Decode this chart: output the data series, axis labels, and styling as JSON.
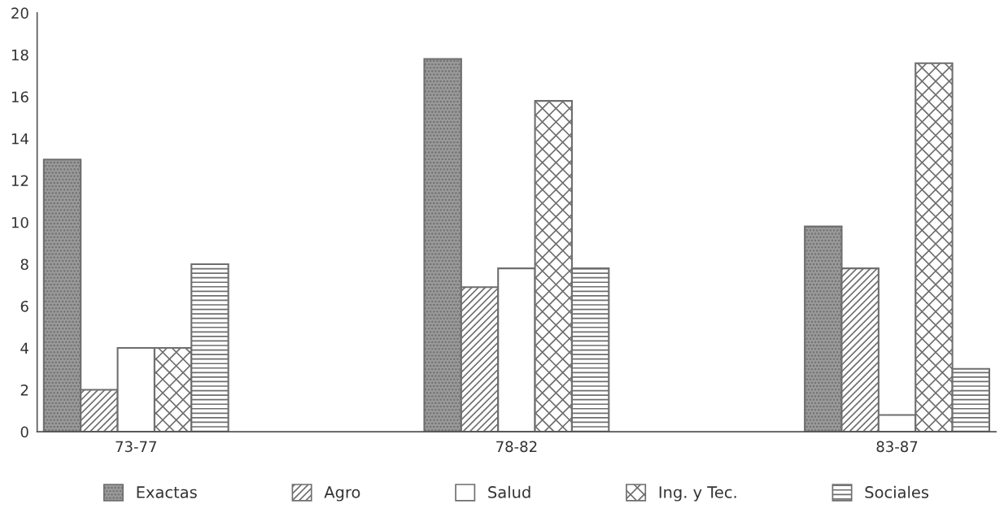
{
  "chart_data": {
    "type": "bar",
    "categories": [
      "73-77",
      "78-82",
      "83-87"
    ],
    "series": [
      {
        "name": "Exactas",
        "color": "#6e6e6e",
        "values": [
          13,
          17.8,
          9.8
        ]
      },
      {
        "name": "Agro",
        "color": "#6e6e6e",
        "values": [
          2,
          6.9,
          7.8
        ]
      },
      {
        "name": "Salud",
        "color": "#6e6e6e",
        "values": [
          4,
          7.8,
          0.8
        ]
      },
      {
        "name": "Ing. y Tec.",
        "color": "#6e6e6e",
        "values": [
          4,
          15.8,
          17.6
        ]
      },
      {
        "name": "Sociales",
        "color": "#6e6e6e",
        "values": [
          8,
          7.8,
          3
        ]
      }
    ],
    "ylim": [
      0,
      20
    ],
    "yticks": [
      0,
      2,
      4,
      6,
      8,
      10,
      12,
      14,
      16,
      18,
      20
    ],
    "grid": false,
    "legend": "bottom"
  }
}
